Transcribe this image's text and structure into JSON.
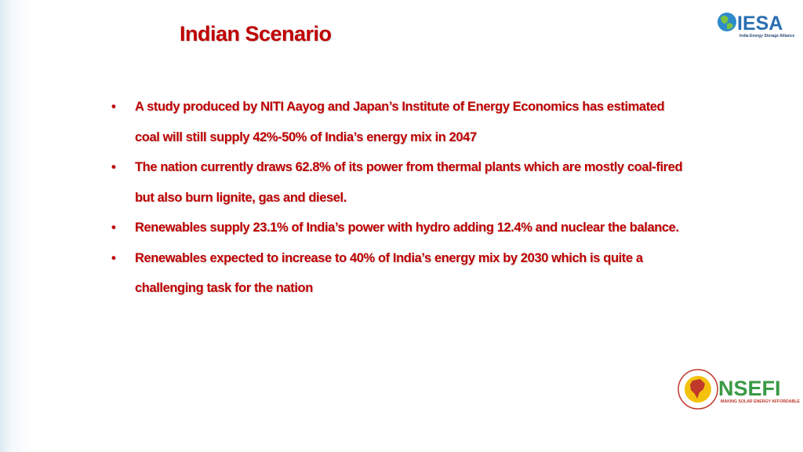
{
  "header": {
    "title": "Indian Scenario"
  },
  "bullets": [
    "A study produced by NITI Aayog and Japan’s Institute of Energy Economics has estimated coal will still supply 42%-50% of India’s energy mix in 2047",
    "The nation currently draws 62.8% of its power from thermal plants which are mostly coal-fired but also burn lignite, gas and diesel.",
    "Renewables supply 23.1% of India’s power with hydro adding 12.4% and nuclear the balance.",
    "Renewables expected to increase to 40% of India’s energy mix by 2030 which is quite a challenging task for the nation"
  ],
  "logos": {
    "iesa": {
      "name": "IESA",
      "tagline": "India Energy Storage Alliance"
    },
    "nsefi": {
      "name": "NSEFI",
      "tagline": "MAKING SOLAR ENERGY AFFORDABLE"
    }
  }
}
